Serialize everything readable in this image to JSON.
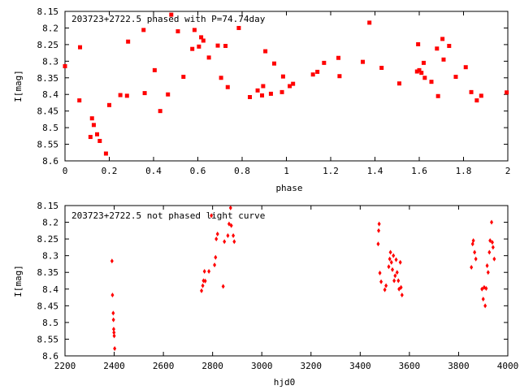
{
  "chart_data": [
    {
      "type": "scatter",
      "title": "203723+2722.5 phased with P=74.74day",
      "xlabel": "phase",
      "ylabel": "I[mag]",
      "xlim": [
        0,
        2
      ],
      "ylim": [
        8.6,
        8.15
      ],
      "y_inverted": true,
      "grid": false,
      "marker_color": "#ff0000",
      "xticks": [
        0,
        0.2,
        0.4,
        0.6,
        0.8,
        1,
        1.2,
        1.4,
        1.6,
        1.8,
        2
      ],
      "xtick_labels": [
        "0",
        "0.2",
        "0.4",
        "0.6",
        "0.8",
        "1",
        "1.2",
        "1.4",
        "1.6",
        "1.8",
        "2"
      ],
      "yticks": [
        8.15,
        8.2,
        8.25,
        8.3,
        8.35,
        8.4,
        8.45,
        8.5,
        8.55,
        8.6
      ],
      "ytick_labels": [
        "8.15",
        "8.2",
        "8.25",
        "8.3",
        "8.35",
        "8.4",
        "8.45",
        "8.5",
        "8.55",
        "8.6"
      ],
      "points": [
        [
          0.0,
          8.315
        ],
        [
          0.065,
          8.418
        ],
        [
          0.068,
          8.258
        ],
        [
          0.115,
          8.528
        ],
        [
          0.122,
          8.472
        ],
        [
          0.13,
          8.492
        ],
        [
          0.145,
          8.52
        ],
        [
          0.157,
          8.54
        ],
        [
          0.185,
          8.578
        ],
        [
          0.2,
          8.432
        ],
        [
          0.25,
          8.402
        ],
        [
          0.28,
          8.404
        ],
        [
          0.285,
          8.241
        ],
        [
          0.355,
          8.206
        ],
        [
          0.36,
          8.396
        ],
        [
          0.405,
          8.327
        ],
        [
          0.43,
          8.45
        ],
        [
          0.465,
          8.4
        ],
        [
          0.48,
          8.16
        ],
        [
          0.51,
          8.21
        ],
        [
          0.535,
          8.347
        ],
        [
          0.575,
          8.263
        ],
        [
          0.585,
          8.206
        ],
        [
          0.605,
          8.256
        ],
        [
          0.615,
          8.228
        ],
        [
          0.625,
          8.238
        ],
        [
          0.65,
          8.289
        ],
        [
          0.69,
          8.253
        ],
        [
          0.705,
          8.35
        ],
        [
          0.725,
          8.254
        ],
        [
          0.735,
          8.378
        ],
        [
          0.785,
          8.2
        ],
        [
          0.835,
          8.408
        ],
        [
          0.87,
          8.388
        ],
        [
          0.89,
          8.403
        ],
        [
          0.895,
          8.375
        ],
        [
          0.905,
          8.27
        ],
        [
          0.93,
          8.398
        ],
        [
          0.945,
          8.307
        ],
        [
          0.98,
          8.393
        ],
        [
          0.985,
          8.346
        ],
        [
          1.015,
          8.375
        ],
        [
          1.03,
          8.368
        ],
        [
          1.12,
          8.34
        ],
        [
          1.14,
          8.332
        ],
        [
          1.17,
          8.305
        ],
        [
          1.235,
          8.29
        ],
        [
          1.24,
          8.345
        ],
        [
          1.345,
          8.302
        ],
        [
          1.375,
          8.184
        ],
        [
          1.43,
          8.32
        ],
        [
          1.51,
          8.367
        ],
        [
          1.59,
          8.331
        ],
        [
          1.595,
          8.249
        ],
        [
          1.6,
          8.327
        ],
        [
          1.61,
          8.335
        ],
        [
          1.62,
          8.305
        ],
        [
          1.625,
          8.35
        ],
        [
          1.655,
          8.362
        ],
        [
          1.68,
          8.262
        ],
        [
          1.685,
          8.405
        ],
        [
          1.705,
          8.233
        ],
        [
          1.71,
          8.295
        ],
        [
          1.735,
          8.254
        ],
        [
          1.765,
          8.347
        ],
        [
          1.81,
          8.318
        ],
        [
          1.835,
          8.393
        ],
        [
          1.86,
          8.418
        ],
        [
          1.88,
          8.404
        ],
        [
          1.995,
          8.394
        ]
      ]
    },
    {
      "type": "scatter",
      "title": "203723+2722.5 not phased light curve",
      "xlabel": "hjd0",
      "ylabel": "I[mag]",
      "xlim": [
        2200,
        4000
      ],
      "ylim": [
        8.6,
        8.15
      ],
      "y_inverted": true,
      "grid": false,
      "marker_color": "#ff0000",
      "xticks": [
        2200,
        2400,
        2600,
        2800,
        3000,
        3200,
        3400,
        3600,
        3800,
        4000
      ],
      "xtick_labels": [
        "2200",
        "2400",
        "2600",
        "2800",
        "3000",
        "3200",
        "3400",
        "3600",
        "3800",
        "4000"
      ],
      "yticks": [
        8.15,
        8.2,
        8.25,
        8.3,
        8.35,
        8.4,
        8.45,
        8.5,
        8.55,
        8.6
      ],
      "ytick_labels": [
        "8.15",
        "8.2",
        "8.25",
        "8.3",
        "8.35",
        "8.4",
        "8.45",
        "8.5",
        "8.55",
        "8.6"
      ],
      "points": [
        [
          2391,
          8.316
        ],
        [
          2393,
          8.418
        ],
        [
          2396,
          8.472
        ],
        [
          2397,
          8.492
        ],
        [
          2398,
          8.52
        ],
        [
          2399,
          8.53
        ],
        [
          2400,
          8.54
        ],
        [
          2402,
          8.578
        ],
        [
          2755,
          8.405
        ],
        [
          2760,
          8.39
        ],
        [
          2763,
          8.375
        ],
        [
          2767,
          8.347
        ],
        [
          2770,
          8.376
        ],
        [
          2785,
          8.347
        ],
        [
          2795,
          8.18
        ],
        [
          2808,
          8.328
        ],
        [
          2812,
          8.305
        ],
        [
          2815,
          8.25
        ],
        [
          2820,
          8.235
        ],
        [
          2843,
          8.392
        ],
        [
          2848,
          8.258
        ],
        [
          2862,
          8.24
        ],
        [
          2867,
          8.205
        ],
        [
          2873,
          8.157
        ],
        [
          2876,
          8.21
        ],
        [
          2884,
          8.24
        ],
        [
          2888,
          8.258
        ],
        [
          3473,
          8.265
        ],
        [
          3475,
          8.225
        ],
        [
          3477,
          8.205
        ],
        [
          3480,
          8.352
        ],
        [
          3485,
          8.378
        ],
        [
          3500,
          8.402
        ],
        [
          3505,
          8.39
        ],
        [
          3516,
          8.333
        ],
        [
          3520,
          8.31
        ],
        [
          3523,
          8.29
        ],
        [
          3527,
          8.32
        ],
        [
          3531,
          8.342
        ],
        [
          3535,
          8.3
        ],
        [
          3538,
          8.375
        ],
        [
          3542,
          8.36
        ],
        [
          3546,
          8.312
        ],
        [
          3550,
          8.35
        ],
        [
          3555,
          8.375
        ],
        [
          3558,
          8.4
        ],
        [
          3563,
          8.32
        ],
        [
          3566,
          8.395
        ],
        [
          3570,
          8.418
        ],
        [
          3852,
          8.335
        ],
        [
          3857,
          8.265
        ],
        [
          3860,
          8.255
        ],
        [
          3865,
          8.29
        ],
        [
          3870,
          8.31
        ],
        [
          3895,
          8.4
        ],
        [
          3900,
          8.43
        ],
        [
          3904,
          8.395
        ],
        [
          3908,
          8.45
        ],
        [
          3912,
          8.398
        ],
        [
          3916,
          8.33
        ],
        [
          3920,
          8.35
        ],
        [
          3925,
          8.29
        ],
        [
          3928,
          8.255
        ],
        [
          3934,
          8.2
        ],
        [
          3937,
          8.26
        ],
        [
          3940,
          8.275
        ],
        [
          3945,
          8.31
        ]
      ]
    }
  ]
}
